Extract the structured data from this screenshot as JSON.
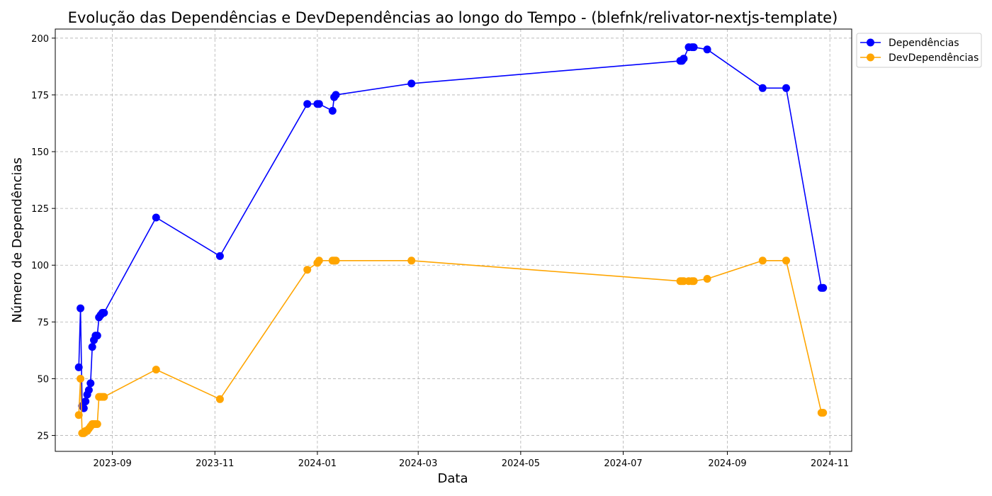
{
  "chart_data": {
    "type": "line",
    "title": "Evolução das Dependências e DevDependências ao longo do Tempo - (blefnk/relivator-nextjs-template)",
    "xlabel": "Data",
    "ylabel": "Número de Dependências",
    "x_ticks": [
      "2023-09",
      "2023-11",
      "2024-01",
      "2024-03",
      "2024-05",
      "2024-07",
      "2024-09",
      "2024-11"
    ],
    "y_ticks": [
      25,
      50,
      75,
      100,
      125,
      150,
      175,
      200
    ],
    "xlim": [
      "2023-07-29",
      "2024-11-14"
    ],
    "ylim": [
      18,
      204
    ],
    "grid": true,
    "legend_position": "top-right",
    "x": [
      "2023-08-12",
      "2023-08-13",
      "2023-08-14",
      "2023-08-15",
      "2023-08-16",
      "2023-08-17",
      "2023-08-18",
      "2023-08-19",
      "2023-08-20",
      "2023-08-21",
      "2023-08-22",
      "2023-08-23",
      "2023-08-24",
      "2023-08-25",
      "2023-08-26",
      "2023-08-27",
      "2023-09-27",
      "2023-11-04",
      "2023-12-26",
      "2024-01-01",
      "2024-01-02",
      "2024-01-10",
      "2024-01-11",
      "2024-01-12",
      "2024-02-26",
      "2024-08-04",
      "2024-08-05",
      "2024-08-06",
      "2024-08-09",
      "2024-08-11",
      "2024-08-12",
      "2024-08-20",
      "2024-09-22",
      "2024-10-06",
      "2024-10-27",
      "2024-10-28"
    ],
    "series": [
      {
        "name": "Dependências",
        "color": "#0000ff",
        "values": [
          55,
          81,
          38,
          37,
          40,
          43,
          45,
          48,
          64,
          67,
          69,
          69,
          77,
          78,
          79,
          79,
          121,
          104,
          171,
          171,
          171,
          168,
          174,
          175,
          180,
          190,
          190,
          191,
          196,
          196,
          196,
          195,
          178,
          178,
          90,
          90
        ]
      },
      {
        "name": "DevDependências",
        "color": "#ffa500",
        "values": [
          34,
          50,
          26,
          26,
          27,
          27,
          28,
          29,
          30,
          30,
          30,
          30,
          42,
          42,
          42,
          42,
          54,
          41,
          98,
          101,
          102,
          102,
          102,
          102,
          102,
          93,
          93,
          93,
          93,
          93,
          93,
          94,
          102,
          102,
          35,
          35
        ]
      }
    ]
  }
}
